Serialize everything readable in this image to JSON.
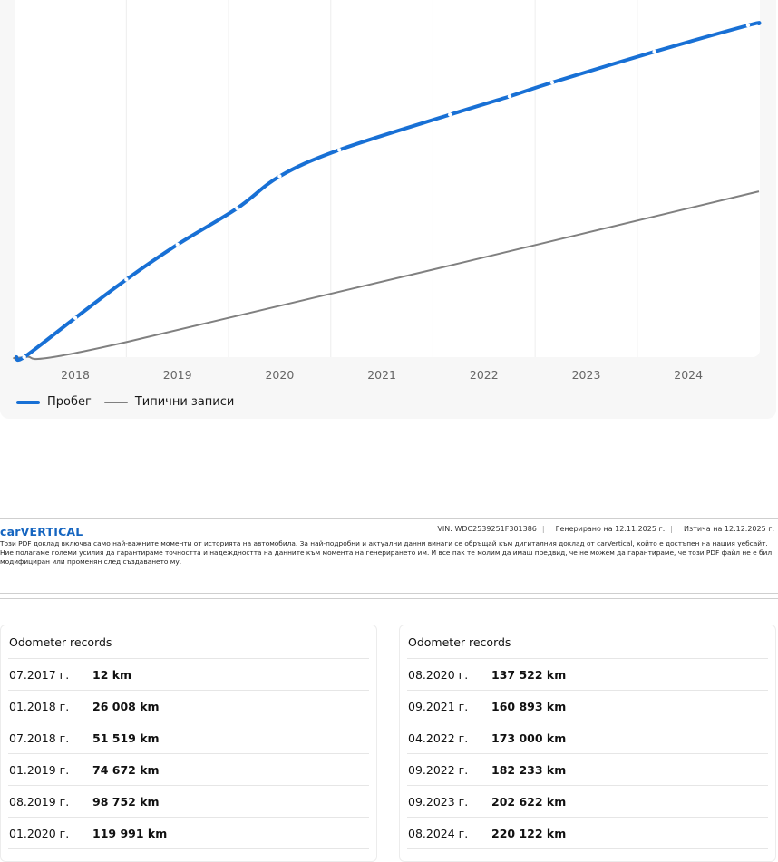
{
  "chart_data": {
    "type": "line",
    "x_ticks": [
      "2018",
      "2019",
      "2020",
      "2021",
      "2022",
      "2023",
      "2024"
    ],
    "series": [
      {
        "name": "Пробег",
        "color": "#1870d5",
        "points": [
          {
            "x": "07.2017",
            "y": 12
          },
          {
            "x": "01.2018",
            "y": 26008
          },
          {
            "x": "07.2018",
            "y": 51519
          },
          {
            "x": "01.2019",
            "y": 74672
          },
          {
            "x": "08.2019",
            "y": 98752
          },
          {
            "x": "01.2020",
            "y": 119991
          },
          {
            "x": "08.2020",
            "y": 137522
          },
          {
            "x": "09.2021",
            "y": 160893
          },
          {
            "x": "04.2022",
            "y": 173000
          },
          {
            "x": "09.2022",
            "y": 182233
          },
          {
            "x": "09.2023",
            "y": 202622
          },
          {
            "x": "08.2024",
            "y": 220122
          }
        ]
      },
      {
        "name": "Типични записи",
        "color": "#808080",
        "points": [
          {
            "x": "07.2017",
            "y": 12
          },
          {
            "x": "07.2018",
            "y": 10000
          },
          {
            "x": "12.2024",
            "y": 110000
          }
        ]
      }
    ],
    "grid": true,
    "legend": "bottom-left"
  },
  "legend": {
    "mileage_label": "Пробег",
    "typical_label": "Типични записи"
  },
  "pdf_header": {
    "logo": "carVERTICAL",
    "vin": "VIN:  WDC2539251F301386",
    "generated": "Генерирано на  12.11.2025 г.",
    "expires": "Изтича на  12.12.2025 г.",
    "disclaimer": "Този PDF доклад включва само най-важните моменти от историята на автомобила. За най-подробни и актуални данни винаги се обръщай към дигиталния доклад от carVertical, който е достъпен на нашия уебсайт. Ние полагаме големи усилия да гарантираме точността и надеждността на данните към момента на генерирането им. И все пак те молим да имаш предвид, че не можем да гарантираме, че този PDF файл не е бил модифициран или променян след създаването му."
  },
  "records_left": {
    "title": "Odometer records",
    "rows": [
      {
        "date": "07.2017 г.",
        "value": "12 km"
      },
      {
        "date": "01.2018 г.",
        "value": "26 008 km"
      },
      {
        "date": "07.2018 г.",
        "value": "51 519 km"
      },
      {
        "date": "01.2019 г.",
        "value": "74 672 km"
      },
      {
        "date": "08.2019 г.",
        "value": "98 752 km"
      },
      {
        "date": "01.2020 г.",
        "value": "119 991 km"
      }
    ]
  },
  "records_right": {
    "title": "Odometer records",
    "rows": [
      {
        "date": "08.2020 г.",
        "value": "137 522 km"
      },
      {
        "date": "09.2021 г.",
        "value": "160 893 km"
      },
      {
        "date": "04.2022 г.",
        "value": "173 000 km"
      },
      {
        "date": "09.2022 г.",
        "value": "182 233 km"
      },
      {
        "date": "09.2023 г.",
        "value": "202 622 km"
      },
      {
        "date": "08.2024 г.",
        "value": "220 122 km"
      }
    ]
  }
}
